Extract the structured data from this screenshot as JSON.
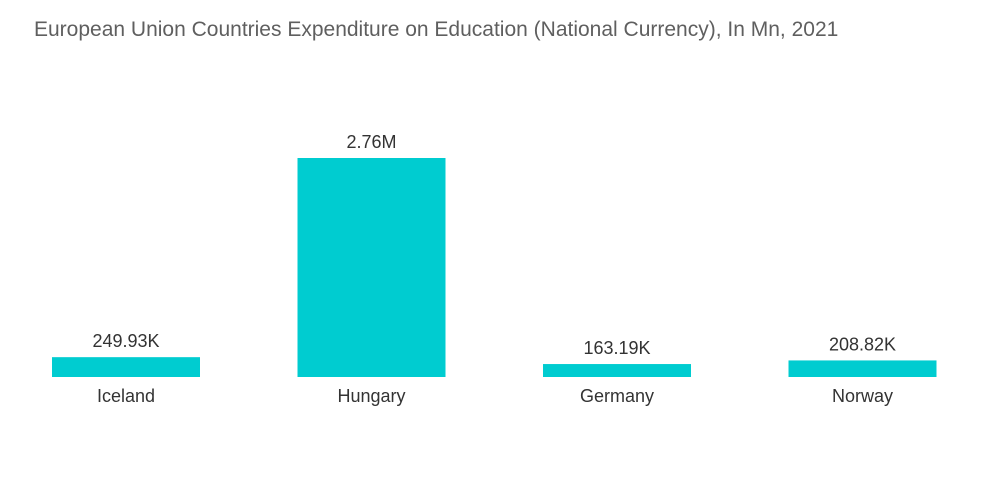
{
  "chart_data": {
    "type": "bar",
    "title": "European Union Countries Expenditure on Education (National Currency), In Mn, 2021",
    "categories": [
      "Iceland",
      "Hungary",
      "Germany",
      "Norway"
    ],
    "values": [
      249930,
      2760000,
      163190,
      208820
    ],
    "data_labels": [
      "249.93K",
      "2.76M",
      "163.19K",
      "208.82K"
    ],
    "xlabel": "",
    "ylabel": "",
    "ylim": [
      0,
      2760000
    ],
    "grid": false,
    "legend": "none",
    "bar_color": "#00ccd0"
  }
}
